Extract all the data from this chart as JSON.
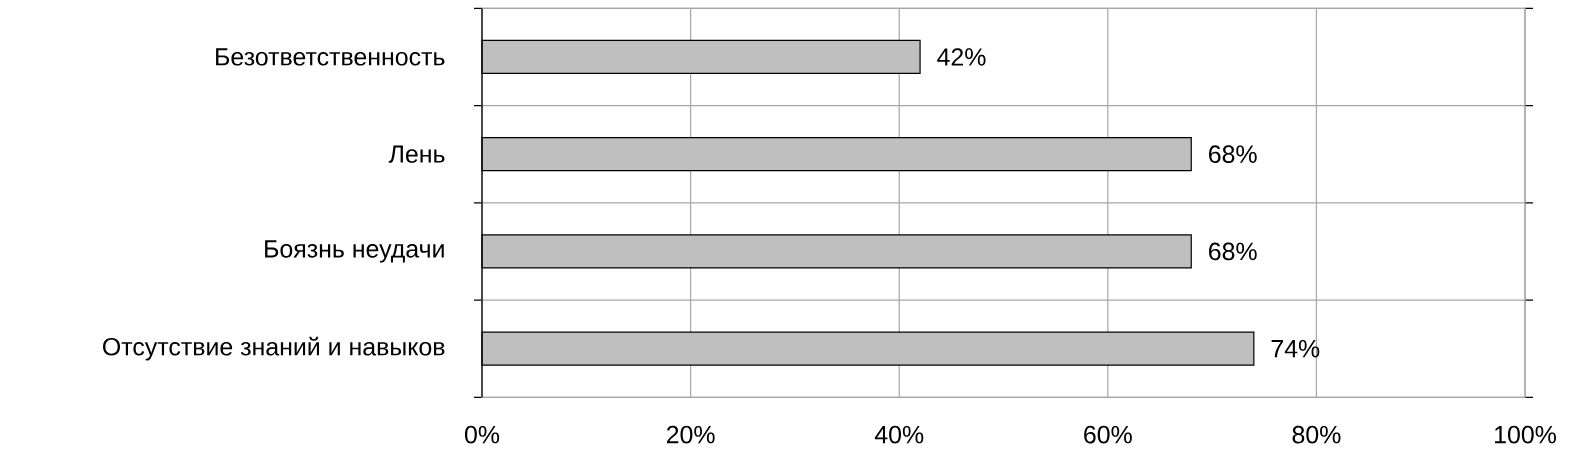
{
  "chart_data": {
    "type": "bar",
    "orientation": "horizontal",
    "categories": [
      "Безответственность",
      "Лень",
      "Боязнь неудачи",
      "Отсутствие знаний и навыков"
    ],
    "values": [
      42,
      68,
      68,
      74
    ],
    "value_labels": [
      "42%",
      "68%",
      "68%",
      "74%"
    ],
    "color": "#bfbfbf",
    "xlim": [
      0,
      100
    ],
    "xticks": [
      {
        "value": 0,
        "label": "0%"
      },
      {
        "value": 20,
        "label": "20%"
      },
      {
        "value": 40,
        "label": "40%"
      },
      {
        "value": 60,
        "label": "60%"
      },
      {
        "value": 80,
        "label": "80%"
      },
      {
        "value": 100,
        "label": "100%"
      }
    ],
    "grid": true
  }
}
